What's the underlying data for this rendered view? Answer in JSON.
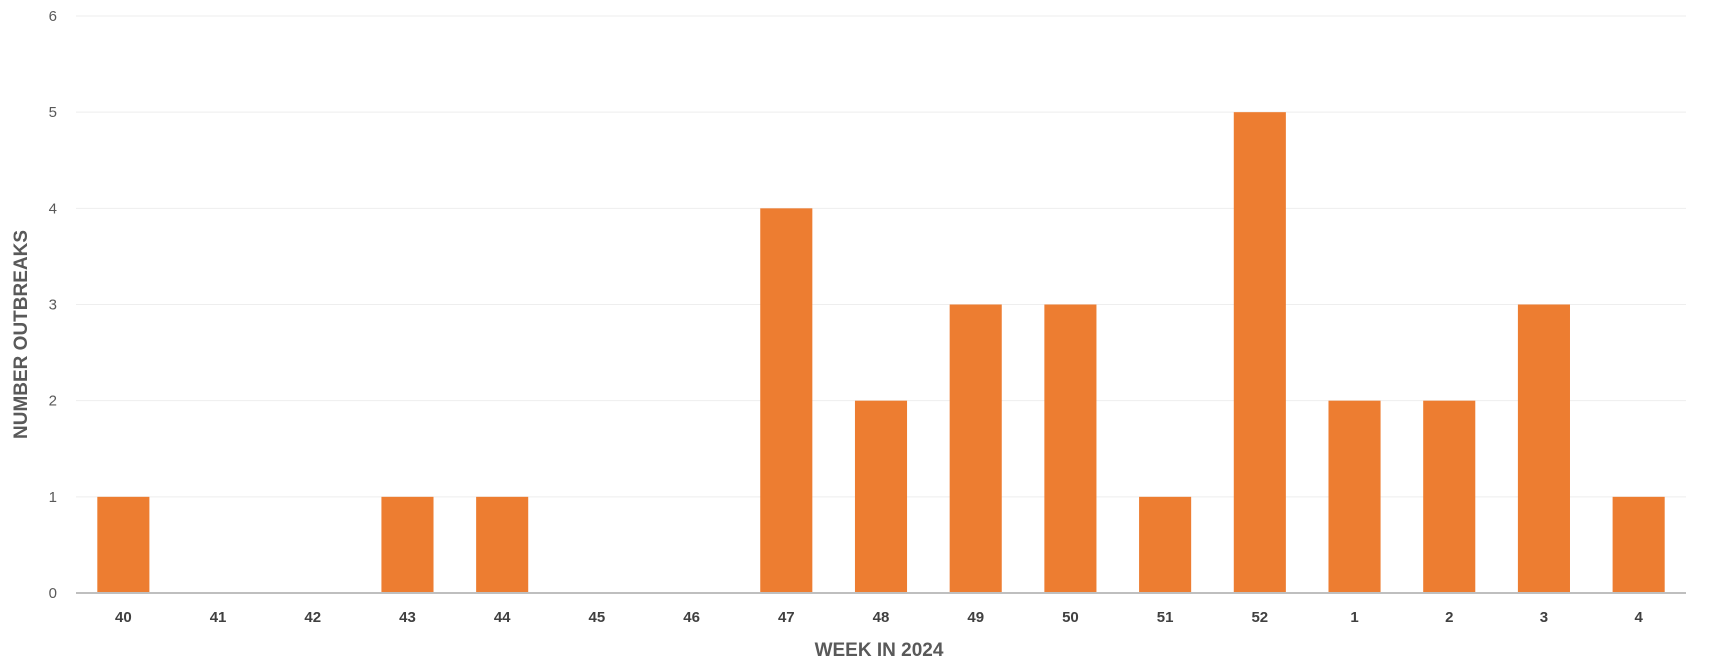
{
  "chart_data": {
    "type": "bar",
    "title": "",
    "xlabel": "WEEK IN 2024",
    "ylabel": "NUMBER OUTBREAKS",
    "categories": [
      "40",
      "41",
      "42",
      "43",
      "44",
      "45",
      "46",
      "47",
      "48",
      "49",
      "50",
      "51",
      "52",
      "1",
      "2",
      "3",
      "4"
    ],
    "values": [
      1,
      0,
      0,
      1,
      1,
      0,
      0,
      4,
      2,
      3,
      3,
      1,
      5,
      2,
      2,
      3,
      1
    ],
    "ylim": [
      0,
      6
    ],
    "yticks": [
      0,
      1,
      2,
      3,
      4,
      5,
      6
    ],
    "grid": true,
    "legend": "none",
    "bar_color": "#ED7D31"
  }
}
